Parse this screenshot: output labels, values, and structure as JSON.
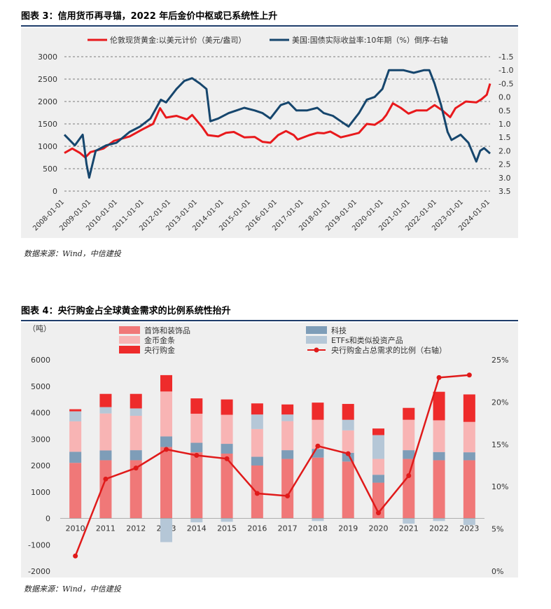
{
  "figure1": {
    "title": "图表 3：信用货币再寻锚，2022 年后金价中枢或已系统性上升",
    "source": "数据来源：Wind，中信建投"
  },
  "figure2": {
    "title": "图表 4：央行购金占全球黄金需求的比例系统性抬升",
    "source": "数据来源：Wind，中信建投"
  },
  "chart_data": [
    {
      "type": "line",
      "title": "",
      "x_ticks": [
        "2008-01-01",
        "2009-01-01",
        "2010-01-01",
        "2011-01-01",
        "2012-01-01",
        "2013-01-01",
        "2014-01-01",
        "2015-01-01",
        "2016-01-01",
        "2017-01-01",
        "2018-01-01",
        "2019-01-01",
        "2020-01-01",
        "2021-01-01",
        "2022-01-01",
        "2023-01-01",
        "2024-01-01"
      ],
      "y_left": {
        "lim": [
          0,
          3000
        ],
        "ticks": [
          0,
          500,
          1000,
          1500,
          2000,
          2500,
          3000
        ]
      },
      "y_right": {
        "lim": [
          -1.5,
          3.5
        ],
        "inverted": true,
        "ticks": [
          "-1.5",
          "-1.0",
          "-0.5",
          "0.0",
          "0.5",
          "1.0",
          "1.5",
          "2.0",
          "2.5",
          "3.0",
          "3.5"
        ]
      },
      "grid": "horizontal dashed",
      "legend_position": "top",
      "series": [
        {
          "name": "伦敦现货黄金:以美元计价（美元/盎司）",
          "color": "#e8191c",
          "axis": "left",
          "x": [
            2008.0,
            2008.3,
            2008.6,
            2008.8,
            2009.0,
            2009.5,
            2009.9,
            2010.5,
            2011.0,
            2011.4,
            2011.67,
            2011.9,
            2012.3,
            2012.7,
            2012.9,
            2013.3,
            2013.5,
            2013.9,
            2014.2,
            2014.5,
            2014.9,
            2015.3,
            2015.6,
            2015.9,
            2016.2,
            2016.5,
            2016.8,
            2016.95,
            2017.4,
            2017.7,
            2017.95,
            2018.2,
            2018.6,
            2018.9,
            2019.3,
            2019.6,
            2019.9,
            2020.2,
            2020.35,
            2020.6,
            2020.9,
            2021.2,
            2021.5,
            2021.9,
            2022.2,
            2022.5,
            2022.8,
            2023.0,
            2023.4,
            2023.8,
            2024.0,
            2024.2,
            2024.33
          ],
          "y": [
            850,
            950,
            850,
            750,
            870,
            950,
            1120,
            1220,
            1380,
            1500,
            1850,
            1640,
            1680,
            1600,
            1700,
            1420,
            1250,
            1220,
            1300,
            1320,
            1200,
            1210,
            1100,
            1080,
            1250,
            1340,
            1250,
            1150,
            1250,
            1300,
            1290,
            1330,
            1200,
            1240,
            1300,
            1500,
            1480,
            1590,
            1700,
            1960,
            1860,
            1730,
            1800,
            1800,
            1920,
            1800,
            1650,
            1850,
            2000,
            1980,
            2050,
            2150,
            2400
          ]
        },
        {
          "name": "美国:国债实际收益率:10年期（%）倒序-右轴",
          "color": "#16466d",
          "axis": "right",
          "x": [
            2008.0,
            2008.4,
            2008.7,
            2008.85,
            2008.95,
            2009.2,
            2009.6,
            2010.0,
            2010.5,
            2010.9,
            2011.3,
            2011.7,
            2011.9,
            2012.3,
            2012.6,
            2012.9,
            2013.2,
            2013.45,
            2013.6,
            2013.9,
            2014.3,
            2014.6,
            2014.9,
            2015.3,
            2015.6,
            2015.9,
            2016.3,
            2016.6,
            2016.9,
            2017.3,
            2017.7,
            2017.95,
            2018.3,
            2018.6,
            2018.9,
            2019.3,
            2019.6,
            2019.9,
            2020.2,
            2020.45,
            2020.7,
            2021.0,
            2021.4,
            2021.8,
            2022.0,
            2022.2,
            2022.45,
            2022.7,
            2022.85,
            2023.2,
            2023.5,
            2023.8,
            2023.95,
            2024.1,
            2024.33
          ],
          "y": [
            1.4,
            1.8,
            1.4,
            2.5,
            3.0,
            2.0,
            1.8,
            1.7,
            1.3,
            1.1,
            0.8,
            0.1,
            0.2,
            -0.3,
            -0.6,
            -0.7,
            -0.5,
            -0.3,
            0.9,
            0.8,
            0.6,
            0.5,
            0.4,
            0.5,
            0.6,
            0.8,
            0.3,
            0.2,
            0.5,
            0.5,
            0.4,
            0.6,
            0.7,
            0.9,
            1.1,
            0.6,
            0.1,
            0.0,
            -0.3,
            -1.0,
            -1.0,
            -1.0,
            -0.9,
            -1.0,
            -1.0,
            -0.5,
            0.3,
            1.3,
            1.6,
            1.4,
            1.7,
            2.4,
            2.0,
            1.9,
            2.1
          ]
        }
      ]
    },
    {
      "type": "bar",
      "title": "",
      "unit_label": "（吨）",
      "categories": [
        "2010",
        "2011",
        "2012",
        "2013",
        "2014",
        "2015",
        "2016",
        "2017",
        "2018",
        "2019",
        "2020",
        "2021",
        "2022",
        "2023"
      ],
      "y_left": {
        "lim": [
          -2000,
          6000
        ],
        "ticks": [
          -2000,
          -1000,
          0,
          1000,
          2000,
          3000,
          4000,
          5000,
          6000
        ]
      },
      "y_right": {
        "lim": [
          0,
          25
        ],
        "unit": "%",
        "ticks": [
          "0%",
          "5%",
          "10%",
          "15%",
          "20%",
          "25%"
        ]
      },
      "stacked": true,
      "legend_position": "top",
      "series": [
        {
          "name": "首饰和装饰品",
          "color": "#f07878",
          "values": [
            2100,
            2200,
            2200,
            2700,
            2500,
            2450,
            2000,
            2250,
            2300,
            2150,
            1350,
            2250,
            2200,
            2200
          ]
        },
        {
          "name": "科技",
          "color": "#7e9db8",
          "values": [
            420,
            370,
            380,
            400,
            360,
            370,
            330,
            330,
            330,
            330,
            300,
            330,
            310,
            300
          ]
        },
        {
          "name": "金币金条",
          "color": "#f8b4b4",
          "values": [
            1150,
            1400,
            1300,
            1700,
            1100,
            1100,
            1050,
            1100,
            1100,
            850,
            600,
            1150,
            1200,
            1150
          ]
        },
        {
          "name": "ETFs和类似投资产品",
          "color": "#b5c7d7",
          "values": [
            380,
            240,
            280,
            -900,
            -150,
            -130,
            550,
            250,
            -100,
            400,
            900,
            -200,
            -100,
            -250
          ]
        },
        {
          "name": "央行购金",
          "color": "#ee2b2b",
          "values": [
            80,
            500,
            550,
            620,
            580,
            580,
            420,
            380,
            650,
            600,
            250,
            450,
            1080,
            1040
          ]
        },
        {
          "name": "央行购金占总需求的比例（右轴）",
          "color": "#e01a1a",
          "type": "line",
          "axis": "right",
          "values": [
            1.8,
            10.9,
            12.2,
            14.4,
            13.7,
            13.3,
            9.2,
            8.9,
            14.8,
            13.9,
            6.9,
            11.3,
            22.9,
            23.2
          ]
        }
      ]
    }
  ]
}
